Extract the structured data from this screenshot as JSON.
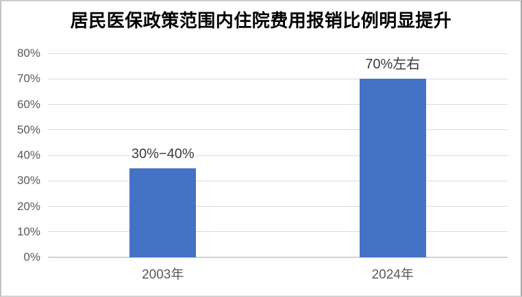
{
  "window": {
    "background": "#ffffff",
    "frame_border_color": "#c2c2c2"
  },
  "chart_data": {
    "type": "bar",
    "title": "居民医保政策范围内住院费用报销比例明显提升",
    "categories": [
      "2003年",
      "2024年"
    ],
    "values": [
      35,
      70
    ],
    "data_labels": [
      "30%−40%",
      "70%左右"
    ],
    "xlabel": "",
    "ylabel": "",
    "ylim": [
      0,
      80
    ],
    "ytick_step": 10,
    "ytick_labels": [
      "0%",
      "10%",
      "20%",
      "30%",
      "40%",
      "50%",
      "60%",
      "70%",
      "80%"
    ],
    "grid": true,
    "legend": "none",
    "bar_color": "#4472C4",
    "gridline_color": "#d9d9d9",
    "baseline_color": "#d0d0d0",
    "axis_label_color": "#595959",
    "data_label_color": "#3b3b3b",
    "title_color": "#000000"
  }
}
